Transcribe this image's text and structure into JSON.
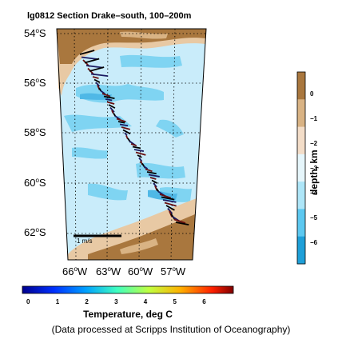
{
  "title": "lg0812 Section Drake–south, 100–200m",
  "lat_labels": [
    {
      "deg": "54",
      "hemi": "S"
    },
    {
      "deg": "56",
      "hemi": "S"
    },
    {
      "deg": "58",
      "hemi": "S"
    },
    {
      "deg": "60",
      "hemi": "S"
    },
    {
      "deg": "62",
      "hemi": "S"
    }
  ],
  "lon_labels": [
    {
      "deg": "66",
      "hemi": "W"
    },
    {
      "deg": "63",
      "hemi": "W"
    },
    {
      "deg": "60",
      "hemi": "W"
    },
    {
      "deg": "57",
      "hemi": "W"
    }
  ],
  "scale_label": "1 m/s",
  "depth_colorbar": {
    "label": "depth, km",
    "ticks": [
      "0",
      "−1",
      "−2",
      "−3",
      "−4",
      "−5",
      "−6"
    ],
    "colors": [
      "#1e9fd8",
      "#5cc8f0",
      "#aee6f8",
      "#e6f6fb",
      "#f3ddc8",
      "#d9b384",
      "#a9773e"
    ]
  },
  "temperature_colorbar": {
    "label": "Temperature, deg C",
    "ticks": [
      "0",
      "1",
      "2",
      "3",
      "4",
      "5",
      "6"
    ],
    "colors": [
      "#00008f",
      "#0050ff",
      "#00d0ff",
      "#7fff80",
      "#ffd000",
      "#ff3000",
      "#800000"
    ]
  },
  "credit": "(Data processed at Scripps Institution of Oceanography)",
  "colors": {
    "land": "#a9773e",
    "shelf": "#e8c9a4",
    "deep_ocean": "#c9ecfa",
    "basin": "#7fd4f2",
    "vector": "#000000"
  }
}
